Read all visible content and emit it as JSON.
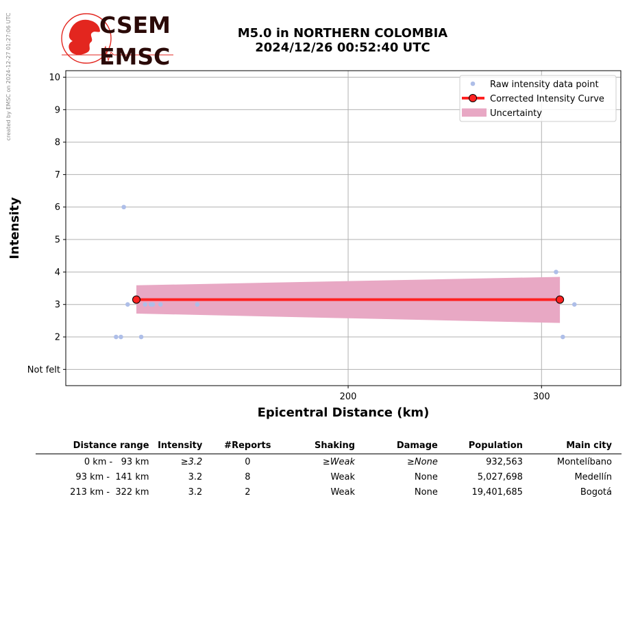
{
  "credit": "created by EMSC on 2024-12-27 01:27:06 UTC",
  "logo": {
    "line1": "CSEM",
    "line2": "EMSC",
    "color_red": "#e3261f"
  },
  "title_line1": "M5.0 in NORTHERN COLOMBIA",
  "title_line2": "2024/12/26 00:52:40 UTC",
  "chart_data": {
    "type": "scatter",
    "xlabel": "Epicentral Distance (km)",
    "ylabel": "Intensity",
    "xlim": [
      54,
      341
    ],
    "ylim": [
      0.5,
      10.2
    ],
    "x_ticks": [
      200,
      300
    ],
    "x_tick_labels": [
      "200",
      "300"
    ],
    "y_ticks": [
      1,
      2,
      3,
      4,
      5,
      6,
      7,
      8,
      9,
      10
    ],
    "y_tick_labels": [
      "Not felt",
      "2",
      "3",
      "4",
      "5",
      "6",
      "7",
      "8",
      "9",
      "10"
    ],
    "grid": true,
    "legend_position": "top-right",
    "series": [
      {
        "name": "Raw intensity data point",
        "kind": "points",
        "color": "#aebee8",
        "points": [
          [
            84,
            6
          ],
          [
            86,
            3
          ],
          [
            80,
            2
          ],
          [
            82.5,
            2
          ],
          [
            93,
            2
          ],
          [
            95,
            3
          ],
          [
            98,
            3
          ],
          [
            99,
            3
          ],
          [
            103,
            3
          ],
          [
            122,
            3
          ],
          [
            307.5,
            4
          ],
          [
            311,
            2
          ],
          [
            317,
            3
          ]
        ]
      },
      {
        "name": "Corrected Intensity Curve",
        "kind": "line",
        "color": "#ff2222",
        "points": [
          [
            90.5,
            3.15
          ],
          [
            309.5,
            3.15
          ]
        ]
      },
      {
        "name": "Uncertainty",
        "kind": "band",
        "color": "#e8a8c4",
        "x": [
          90.5,
          309.5
        ],
        "lower": [
          2.72,
          2.43
        ],
        "upper": [
          3.59,
          3.85
        ]
      }
    ]
  },
  "table": {
    "headers": [
      "Distance range",
      "Intensity",
      "#Reports",
      "Shaking",
      "Damage",
      "Population",
      "Main city"
    ],
    "rows": [
      {
        "range": "0 km -   93 km",
        "intensity": "≥3.2",
        "reports": "0",
        "shaking": "≥Weak",
        "damage": "≥None",
        "population": "932,563",
        "city": "Montelíbano",
        "italic": true
      },
      {
        "range": "93 km -  141 km",
        "intensity": "3.2",
        "reports": "8",
        "shaking": "Weak",
        "damage": "None",
        "population": "5,027,698",
        "city": "Medellín",
        "italic": false
      },
      {
        "range": "213 km -  322 km",
        "intensity": "3.2",
        "reports": "2",
        "shaking": "Weak",
        "damage": "None",
        "population": "19,401,685",
        "city": "Bogotá",
        "italic": false
      }
    ]
  }
}
